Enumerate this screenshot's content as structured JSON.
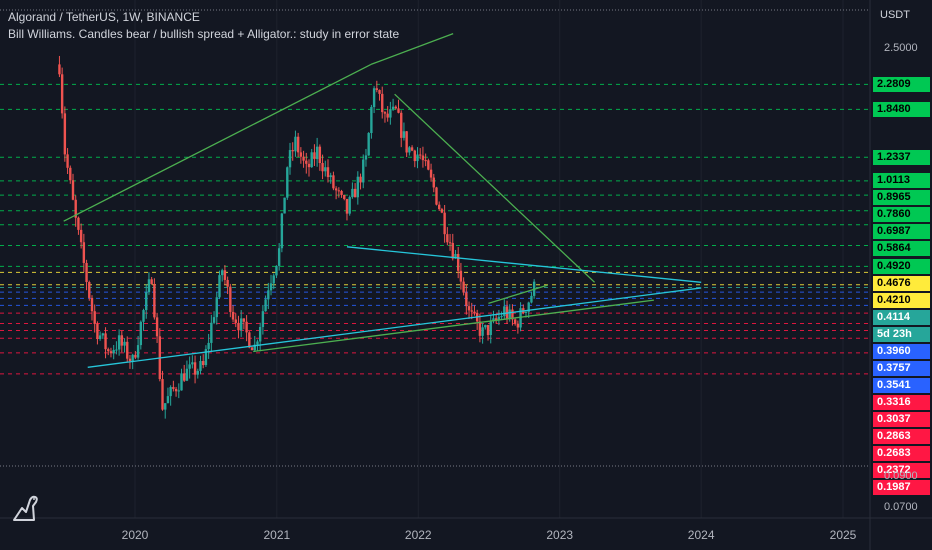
{
  "header": {
    "title": "Algorand / TetherUS, 1W, BINANCE",
    "study": "Bill Williams. Candles bear / bullish spread + Alligator.: study in error state"
  },
  "axis": {
    "currency": "USDT",
    "plain_ticks": [
      {
        "label": "2.5000",
        "y": 2.5
      },
      {
        "label": "0.0900",
        "y": 0.09
      },
      {
        "label": "0.0700",
        "y": 0.07
      }
    ],
    "time_ticks": [
      "2020",
      "2021",
      "2022",
      "2023",
      "2024",
      "2025"
    ]
  },
  "price_labels": [
    {
      "label": "2.2809",
      "value": 2.2809,
      "bg": "#00c853",
      "fg": "#000000"
    },
    {
      "label": "1.8480",
      "value": 1.848,
      "bg": "#00c853",
      "fg": "#000000"
    },
    {
      "label": "1.2337",
      "value": 1.2337,
      "bg": "#00c853",
      "fg": "#000000"
    },
    {
      "label": "1.0113",
      "value": 1.0113,
      "bg": "#00c853",
      "fg": "#000000"
    },
    {
      "label": "0.8965",
      "value": 0.8965,
      "bg": "#00c853",
      "fg": "#000000"
    },
    {
      "label": "0.7860",
      "value": 0.786,
      "bg": "#00c853",
      "fg": "#000000"
    },
    {
      "label": "0.6987",
      "value": 0.6987,
      "bg": "#00c853",
      "fg": "#000000"
    },
    {
      "label": "0.5864",
      "value": 0.5864,
      "bg": "#00c853",
      "fg": "#000000"
    },
    {
      "label": "0.4920",
      "value": 0.492,
      "bg": "#00c853",
      "fg": "#000000"
    },
    {
      "label": "0.4676",
      "value": 0.4676,
      "bg": "#ffeb3b",
      "fg": "#000000"
    },
    {
      "label": "0.4210",
      "value": 0.421,
      "bg": "#ffeb3b",
      "fg": "#000000"
    },
    {
      "label": "0.4114",
      "value": 0.4114,
      "bg": "#26a69a",
      "fg": "#ffffff"
    },
    {
      "label": "5d 23h",
      "value": 0.4,
      "bg": "#26a69a",
      "fg": "#ffffff"
    },
    {
      "label": "0.3960",
      "value": 0.396,
      "bg": "#2962ff",
      "fg": "#ffffff"
    },
    {
      "label": "0.3757",
      "value": 0.3757,
      "bg": "#2962ff",
      "fg": "#ffffff"
    },
    {
      "label": "0.3541",
      "value": 0.3541,
      "bg": "#2962ff",
      "fg": "#ffffff"
    },
    {
      "label": "0.3316",
      "value": 0.3316,
      "bg": "#ff1744",
      "fg": "#ffffff"
    },
    {
      "label": "0.3037",
      "value": 0.3037,
      "bg": "#ff1744",
      "fg": "#ffffff"
    },
    {
      "label": "0.2863",
      "value": 0.2863,
      "bg": "#ff1744",
      "fg": "#ffffff"
    },
    {
      "label": "0.2683",
      "value": 0.2683,
      "bg": "#ff1744",
      "fg": "#ffffff"
    },
    {
      "label": "0.2372",
      "value": 0.2372,
      "bg": "#ff1744",
      "fg": "#ffffff"
    },
    {
      "label": "0.1987",
      "value": 0.1987,
      "bg": "#ff1744",
      "fg": "#ffffff"
    }
  ],
  "colors": {
    "bg": "#131722",
    "up": "#26a69a",
    "down": "#ef5350",
    "trend_green": "#4caf50",
    "trend_cyan": "#26c6da"
  },
  "chart_data": {
    "type": "candlestick",
    "symbol": "ALGO/USDT",
    "interval": "1W",
    "x_range": [
      "2019-06",
      "2025-08"
    ],
    "close_path": [
      [
        "2019-06-20",
        2.7
      ],
      [
        "2019-07-04",
        1.3
      ],
      [
        "2019-08-01",
        0.72
      ],
      [
        "2019-08-22",
        0.5
      ],
      [
        "2019-09-19",
        0.3
      ],
      [
        "2019-10-24",
        0.24
      ],
      [
        "2019-11-21",
        0.26
      ],
      [
        "2019-12-26",
        0.22
      ],
      [
        "2020-02-13",
        0.46
      ],
      [
        "2020-03-12",
        0.15
      ],
      [
        "2020-05-07",
        0.2
      ],
      [
        "2020-06-25",
        0.21
      ],
      [
        "2020-08-13",
        0.48
      ],
      [
        "2020-09-10",
        0.33
      ],
      [
        "2020-11-05",
        0.25
      ],
      [
        "2020-12-10",
        0.42
      ],
      [
        "2021-01-07",
        0.56
      ],
      [
        "2021-01-28",
        1.15
      ],
      [
        "2021-02-18",
        1.4
      ],
      [
        "2021-03-18",
        1.1
      ],
      [
        "2021-04-15",
        1.3
      ],
      [
        "2021-05-20",
        1.0
      ],
      [
        "2021-07-01",
        0.78
      ],
      [
        "2021-08-19",
        1.2
      ],
      [
        "2021-09-09",
        2.3
      ],
      [
        "2021-10-07",
        1.7
      ],
      [
        "2021-11-04",
        1.8
      ],
      [
        "2021-12-02",
        1.35
      ],
      [
        "2022-01-06",
        1.25
      ],
      [
        "2022-02-10",
        0.95
      ],
      [
        "2022-03-17",
        0.65
      ],
      [
        "2022-04-14",
        0.5
      ],
      [
        "2022-05-12",
        0.33
      ],
      [
        "2022-06-16",
        0.28
      ],
      [
        "2022-07-14",
        0.3
      ],
      [
        "2022-08-11",
        0.34
      ],
      [
        "2022-09-08",
        0.3
      ],
      [
        "2022-10-13",
        0.37
      ],
      [
        "2022-10-27",
        0.41
      ]
    ],
    "trendlines": [
      {
        "color": "green",
        "from": [
          "2019-07",
          0.72
        ],
        "to": [
          "2021-09",
          2.7
        ]
      },
      {
        "color": "green",
        "from": [
          "2021-09",
          2.7
        ],
        "to": [
          "2022-04",
          3.5
        ]
      },
      {
        "color": "green",
        "from": [
          "2021-11",
          2.1
        ],
        "to": [
          "2023-04",
          0.43
        ]
      },
      {
        "color": "cyan",
        "from": [
          "2021-07",
          0.58
        ],
        "to": [
          "2024-01",
          0.43
        ]
      },
      {
        "color": "cyan",
        "from": [
          "2019-09",
          0.21
        ],
        "to": [
          "2024-01",
          0.41
        ]
      },
      {
        "color": "green",
        "from": [
          "2020-11",
          0.24
        ],
        "to": [
          "2023-09",
          0.37
        ]
      },
      {
        "color": "green",
        "from": [
          "2022-07",
          0.36
        ],
        "to": [
          "2022-12",
          0.42
        ]
      }
    ]
  }
}
